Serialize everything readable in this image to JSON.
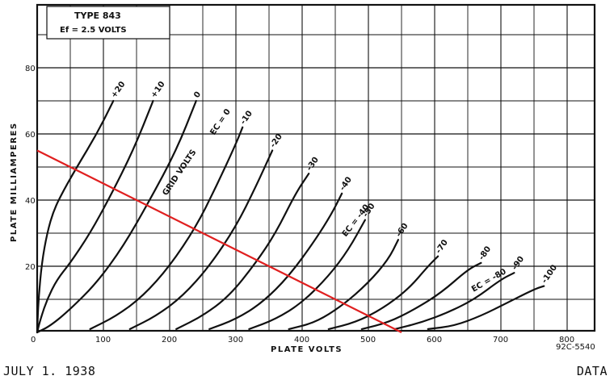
{
  "chart_data": {
    "type": "line",
    "title": "TYPE 843",
    "subtitle": "Ef = 2.5 VOLTS",
    "xlabel": "PLATE VOLTS",
    "ylabel": "PLATE MILLIAMPERES",
    "xlim": [
      0,
      850
    ],
    "ylim": [
      0,
      100
    ],
    "x_ticks": [
      0,
      100,
      200,
      300,
      400,
      500,
      600,
      700,
      800
    ],
    "y_ticks": [
      0,
      20,
      40,
      60,
      80
    ],
    "grid": true,
    "figure_number": "92C-5540",
    "series": [
      {
        "name": "+20",
        "points": [
          [
            0,
            0
          ],
          [
            2,
            10
          ],
          [
            7,
            21
          ],
          [
            15,
            30
          ],
          [
            25,
            37
          ],
          [
            40,
            43
          ],
          [
            60,
            50
          ],
          [
            90,
            60
          ],
          [
            115,
            70
          ]
        ]
      },
      {
        "name": "+10",
        "points": [
          [
            0,
            0
          ],
          [
            5,
            4
          ],
          [
            15,
            10
          ],
          [
            30,
            16
          ],
          [
            50,
            21
          ],
          [
            80,
            30
          ],
          [
            110,
            41
          ],
          [
            145,
            55
          ],
          [
            175,
            70
          ]
        ]
      },
      {
        "name": "0",
        "points": [
          [
            0,
            0
          ],
          [
            20,
            2
          ],
          [
            50,
            7
          ],
          [
            90,
            15
          ],
          [
            130,
            26
          ],
          [
            170,
            40
          ],
          [
            210,
            55
          ],
          [
            240,
            70
          ]
        ]
      },
      {
        "name": "-10",
        "points": [
          [
            80,
            1
          ],
          [
            120,
            5
          ],
          [
            160,
            11
          ],
          [
            200,
            20
          ],
          [
            240,
            32
          ],
          [
            270,
            44
          ],
          [
            300,
            57
          ],
          [
            310,
            62
          ]
        ]
      },
      {
        "name": "-20",
        "points": [
          [
            140,
            1
          ],
          [
            180,
            5
          ],
          [
            220,
            11
          ],
          [
            260,
            20
          ],
          [
            300,
            32
          ],
          [
            330,
            44
          ],
          [
            355,
            55
          ]
        ]
      },
      {
        "name": "-30",
        "points": [
          [
            210,
            1
          ],
          [
            250,
            5
          ],
          [
            290,
            11
          ],
          [
            330,
            21
          ],
          [
            360,
            30
          ],
          [
            390,
            42
          ],
          [
            410,
            48
          ]
        ]
      },
      {
        "name": "-40",
        "points": [
          [
            260,
            1
          ],
          [
            300,
            4
          ],
          [
            340,
            9
          ],
          [
            380,
            17
          ],
          [
            420,
            28
          ],
          [
            445,
            36
          ],
          [
            460,
            42
          ]
        ]
      },
      {
        "name": "-50",
        "points": [
          [
            320,
            1
          ],
          [
            360,
            4
          ],
          [
            400,
            9
          ],
          [
            440,
            17
          ],
          [
            470,
            25
          ],
          [
            495,
            34
          ]
        ]
      },
      {
        "name": "-60",
        "points": [
          [
            380,
            1
          ],
          [
            420,
            3
          ],
          [
            460,
            8
          ],
          [
            500,
            15
          ],
          [
            530,
            22
          ],
          [
            545,
            28
          ]
        ]
      },
      {
        "name": "-70",
        "points": [
          [
            440,
            1
          ],
          [
            480,
            3
          ],
          [
            520,
            7
          ],
          [
            560,
            13
          ],
          [
            590,
            20
          ],
          [
            605,
            23
          ]
        ]
      },
      {
        "name": "-80",
        "points": [
          [
            490,
            1
          ],
          [
            530,
            3
          ],
          [
            570,
            7
          ],
          [
            610,
            12
          ],
          [
            650,
            19
          ],
          [
            670,
            21
          ]
        ]
      },
      {
        "name": "-90",
        "points": [
          [
            540,
            1
          ],
          [
            580,
            3
          ],
          [
            620,
            6
          ],
          [
            660,
            10
          ],
          [
            700,
            16
          ],
          [
            720,
            18
          ]
        ]
      },
      {
        "name": "-100",
        "points": [
          [
            590,
            1
          ],
          [
            630,
            2
          ],
          [
            670,
            5
          ],
          [
            710,
            9
          ],
          [
            750,
            13
          ],
          [
            765,
            14
          ]
        ]
      }
    ],
    "load_line": {
      "color": "#e02020",
      "points": [
        [
          0,
          55
        ],
        [
          550,
          0
        ]
      ]
    },
    "annotations": {
      "grid_volts": "GRID VOLTS",
      "ec_zero": "EC = 0",
      "ec_minus_40": "EC = -40",
      "ec_minus_80": "EC = -80"
    }
  },
  "footer": {
    "left": "JULY 1. 1938",
    "right": "DATA"
  }
}
